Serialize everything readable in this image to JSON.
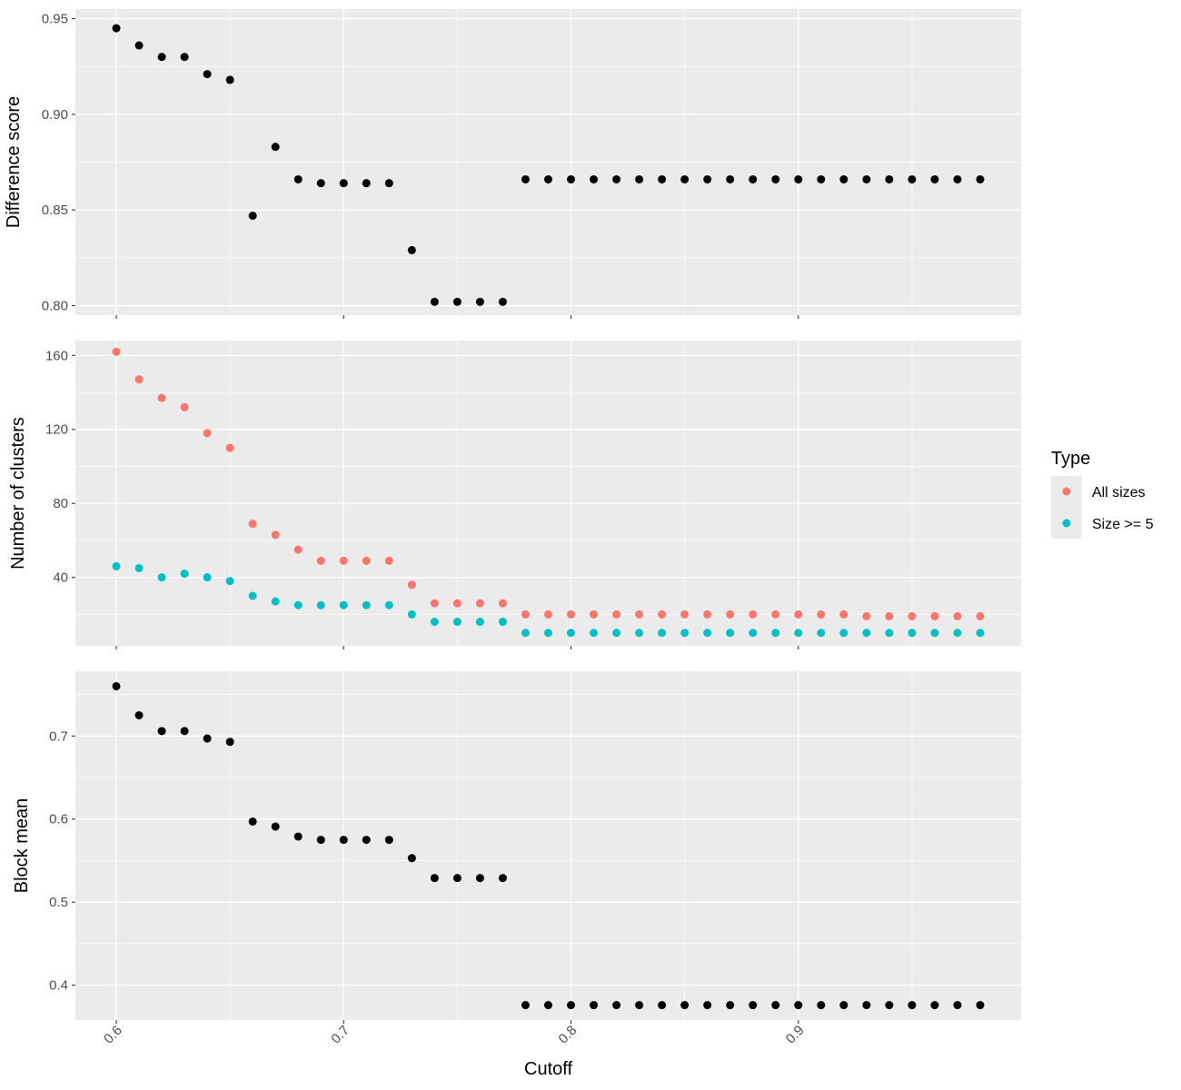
{
  "chart_data": [
    {
      "type": "scatter",
      "ylabel": "Difference score",
      "xlim": [
        0.582,
        0.998
      ],
      "ylim": [
        0.795,
        0.955
      ],
      "yticks": [
        0.8,
        0.85,
        0.9,
        0.95
      ],
      "ytick_labels": [
        "0.80",
        "0.85",
        "0.90",
        "0.95"
      ],
      "grid": true,
      "series": [
        {
          "color": "#000000",
          "points": [
            [
              0.6,
              0.945
            ],
            [
              0.61,
              0.936
            ],
            [
              0.62,
              0.93
            ],
            [
              0.63,
              0.93
            ],
            [
              0.64,
              0.921
            ],
            [
              0.65,
              0.918
            ],
            [
              0.66,
              0.847
            ],
            [
              0.67,
              0.883
            ],
            [
              0.68,
              0.866
            ],
            [
              0.69,
              0.864
            ],
            [
              0.7,
              0.864
            ],
            [
              0.71,
              0.864
            ],
            [
              0.72,
              0.864
            ],
            [
              0.73,
              0.829
            ],
            [
              0.74,
              0.802
            ],
            [
              0.75,
              0.802
            ],
            [
              0.76,
              0.802
            ],
            [
              0.77,
              0.802
            ],
            [
              0.78,
              0.866
            ],
            [
              0.79,
              0.866
            ],
            [
              0.8,
              0.866
            ],
            [
              0.81,
              0.866
            ],
            [
              0.82,
              0.866
            ],
            [
              0.83,
              0.866
            ],
            [
              0.84,
              0.866
            ],
            [
              0.85,
              0.866
            ],
            [
              0.86,
              0.866
            ],
            [
              0.87,
              0.866
            ],
            [
              0.88,
              0.866
            ],
            [
              0.89,
              0.866
            ],
            [
              0.9,
              0.866
            ],
            [
              0.91,
              0.866
            ],
            [
              0.92,
              0.866
            ],
            [
              0.93,
              0.866
            ],
            [
              0.94,
              0.866
            ],
            [
              0.95,
              0.866
            ],
            [
              0.96,
              0.866
            ],
            [
              0.97,
              0.866
            ],
            [
              0.98,
              0.866
            ]
          ]
        }
      ]
    },
    {
      "type": "scatter",
      "ylabel": "Number of clusters",
      "xlim": [
        0.582,
        0.998
      ],
      "ylim": [
        3,
        168
      ],
      "yticks": [
        40,
        80,
        120,
        160
      ],
      "ytick_labels": [
        "40",
        "80",
        "120",
        "160"
      ],
      "grid": true,
      "series": [
        {
          "name": "All sizes",
          "color": "#F8766D",
          "points": [
            [
              0.6,
              162
            ],
            [
              0.61,
              147
            ],
            [
              0.62,
              137
            ],
            [
              0.63,
              132
            ],
            [
              0.64,
              118
            ],
            [
              0.65,
              110
            ],
            [
              0.66,
              69
            ],
            [
              0.67,
              63
            ],
            [
              0.68,
              55
            ],
            [
              0.69,
              49
            ],
            [
              0.7,
              49
            ],
            [
              0.71,
              49
            ],
            [
              0.72,
              49
            ],
            [
              0.73,
              36
            ],
            [
              0.74,
              26
            ],
            [
              0.75,
              26
            ],
            [
              0.76,
              26
            ],
            [
              0.77,
              26
            ],
            [
              0.78,
              20
            ],
            [
              0.79,
              20
            ],
            [
              0.8,
              20
            ],
            [
              0.81,
              20
            ],
            [
              0.82,
              20
            ],
            [
              0.83,
              20
            ],
            [
              0.84,
              20
            ],
            [
              0.85,
              20
            ],
            [
              0.86,
              20
            ],
            [
              0.87,
              20
            ],
            [
              0.88,
              20
            ],
            [
              0.89,
              20
            ],
            [
              0.9,
              20
            ],
            [
              0.91,
              20
            ],
            [
              0.92,
              20
            ],
            [
              0.93,
              19
            ],
            [
              0.94,
              19
            ],
            [
              0.95,
              19
            ],
            [
              0.96,
              19
            ],
            [
              0.97,
              19
            ],
            [
              0.98,
              19
            ]
          ]
        },
        {
          "name": "Size >= 5",
          "color": "#00BFC4",
          "points": [
            [
              0.6,
              46
            ],
            [
              0.61,
              45
            ],
            [
              0.62,
              40
            ],
            [
              0.63,
              42
            ],
            [
              0.64,
              40
            ],
            [
              0.65,
              38
            ],
            [
              0.66,
              30
            ],
            [
              0.67,
              27
            ],
            [
              0.68,
              25
            ],
            [
              0.69,
              25
            ],
            [
              0.7,
              25
            ],
            [
              0.71,
              25
            ],
            [
              0.72,
              25
            ],
            [
              0.73,
              20
            ],
            [
              0.74,
              16
            ],
            [
              0.75,
              16
            ],
            [
              0.76,
              16
            ],
            [
              0.77,
              16
            ],
            [
              0.78,
              10
            ],
            [
              0.79,
              10
            ],
            [
              0.8,
              10
            ],
            [
              0.81,
              10
            ],
            [
              0.82,
              10
            ],
            [
              0.83,
              10
            ],
            [
              0.84,
              10
            ],
            [
              0.85,
              10
            ],
            [
              0.86,
              10
            ],
            [
              0.87,
              10
            ],
            [
              0.88,
              10
            ],
            [
              0.89,
              10
            ],
            [
              0.9,
              10
            ],
            [
              0.91,
              10
            ],
            [
              0.92,
              10
            ],
            [
              0.93,
              10
            ],
            [
              0.94,
              10
            ],
            [
              0.95,
              10
            ],
            [
              0.96,
              10
            ],
            [
              0.97,
              10
            ],
            [
              0.98,
              10
            ]
          ]
        }
      ]
    },
    {
      "type": "scatter",
      "ylabel": "Block mean",
      "xlabel": "Cutoff",
      "xlim": [
        0.582,
        0.998
      ],
      "ylim": [
        0.358,
        0.778
      ],
      "yticks": [
        0.4,
        0.5,
        0.6,
        0.7
      ],
      "ytick_labels": [
        "0.4",
        "0.5",
        "0.6",
        "0.7"
      ],
      "xticks": [
        0.6,
        0.7,
        0.8,
        0.9
      ],
      "xtick_labels": [
        "0.6",
        "0.7",
        "0.8",
        "0.9"
      ],
      "grid": true,
      "series": [
        {
          "color": "#000000",
          "points": [
            [
              0.6,
              0.76
            ],
            [
              0.61,
              0.725
            ],
            [
              0.62,
              0.706
            ],
            [
              0.63,
              0.706
            ],
            [
              0.64,
              0.697
            ],
            [
              0.65,
              0.693
            ],
            [
              0.66,
              0.597
            ],
            [
              0.67,
              0.591
            ],
            [
              0.68,
              0.579
            ],
            [
              0.69,
              0.575
            ],
            [
              0.7,
              0.575
            ],
            [
              0.71,
              0.575
            ],
            [
              0.72,
              0.575
            ],
            [
              0.73,
              0.553
            ],
            [
              0.74,
              0.529
            ],
            [
              0.75,
              0.529
            ],
            [
              0.76,
              0.529
            ],
            [
              0.77,
              0.529
            ],
            [
              0.78,
              0.376
            ],
            [
              0.79,
              0.376
            ],
            [
              0.8,
              0.376
            ],
            [
              0.81,
              0.376
            ],
            [
              0.82,
              0.376
            ],
            [
              0.83,
              0.376
            ],
            [
              0.84,
              0.376
            ],
            [
              0.85,
              0.376
            ],
            [
              0.86,
              0.376
            ],
            [
              0.87,
              0.376
            ],
            [
              0.88,
              0.376
            ],
            [
              0.89,
              0.376
            ],
            [
              0.9,
              0.376
            ],
            [
              0.91,
              0.376
            ],
            [
              0.92,
              0.376
            ],
            [
              0.93,
              0.376
            ],
            [
              0.94,
              0.376
            ],
            [
              0.95,
              0.376
            ],
            [
              0.96,
              0.376
            ],
            [
              0.97,
              0.376
            ],
            [
              0.98,
              0.376
            ]
          ]
        }
      ]
    }
  ],
  "legend": {
    "title": "Type",
    "placement": "right",
    "items": [
      {
        "label": "All sizes",
        "color": "#F8766D"
      },
      {
        "label": "Size >= 5",
        "color": "#00BFC4"
      }
    ]
  },
  "colors": {
    "panel_background": "#EBEBEB",
    "grid_major": "#FFFFFF",
    "tick_text": "#4D4D4D"
  }
}
